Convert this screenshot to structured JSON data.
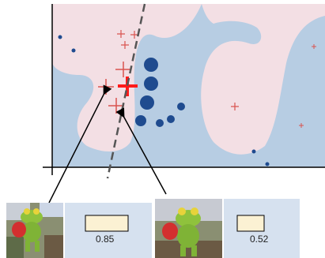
{
  "colors": {
    "region_blue": "#b7cde3",
    "region_pink": "#f3dfe4",
    "point_blue": "#1f4b8f",
    "point_red": "#d9534f",
    "score_box": "#fbf1d3",
    "panel_bg": "#d6e1ef",
    "boundary": "#555555"
  },
  "examples": [
    {
      "image": "frog-perturbed-thumbnail",
      "score": "0.85"
    },
    {
      "image": "frog-original-thumbnail",
      "score": "0.52"
    }
  ]
}
